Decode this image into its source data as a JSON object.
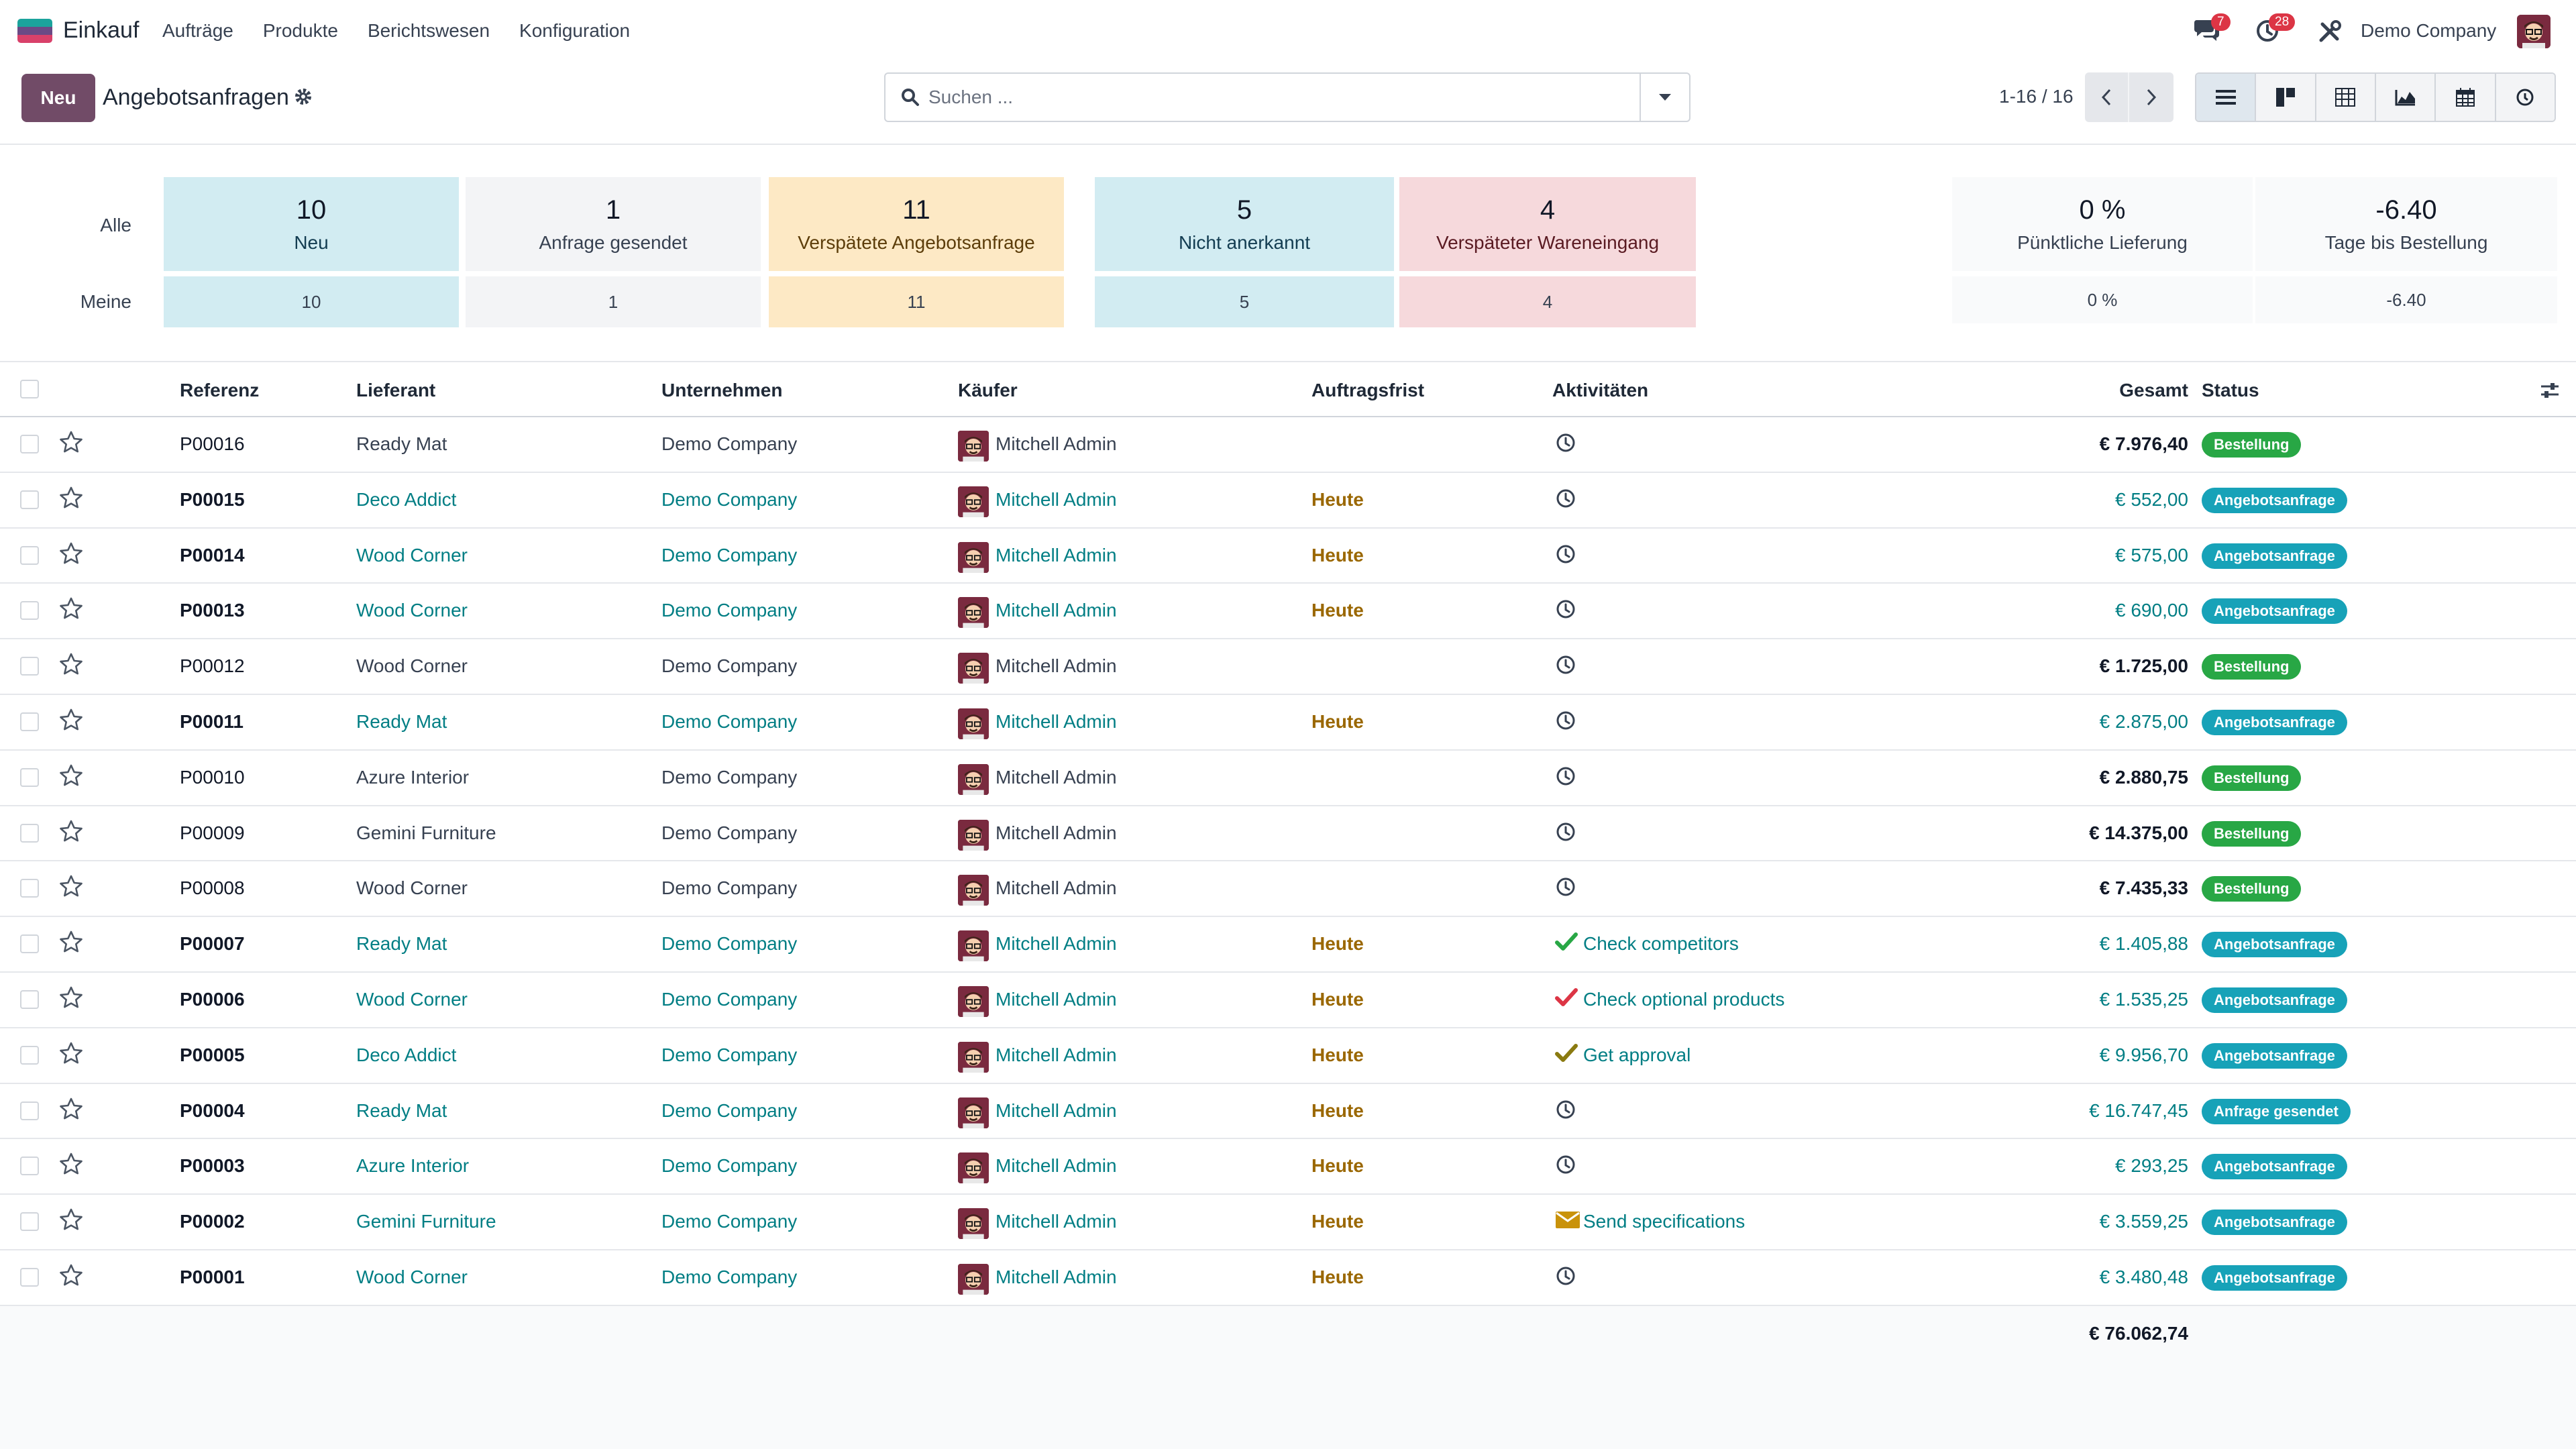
{
  "navbar": {
    "app_name": "Einkauf",
    "menu": [
      "Aufträge",
      "Produkte",
      "Berichtswesen",
      "Konfiguration"
    ],
    "messages_badge": "7",
    "activities_badge": "28",
    "company": "Demo Company"
  },
  "control": {
    "new_button": "Neu",
    "breadcrumb": "Angebotsanfragen",
    "search_placeholder": "Suchen ...",
    "pager": "1-16 / 16"
  },
  "dashboard": {
    "row_all": "Alle",
    "row_mine": "Meine",
    "tiles": [
      {
        "value": "10",
        "label": "Neu",
        "mine": "10"
      },
      {
        "value": "1",
        "label": "Anfrage gesendet",
        "mine": "1"
      },
      {
        "value": "11",
        "label": "Verspätete Angebotsanfrage",
        "mine": "11"
      },
      {
        "value": "5",
        "label": "Nicht anerkannt",
        "mine": "5"
      },
      {
        "value": "4",
        "label": "Verspäteter Wareneingang",
        "mine": "4"
      }
    ],
    "kpis": [
      {
        "value": "0 %",
        "label": "Pünktliche Lieferung",
        "mine": "0 %"
      },
      {
        "value": "-6.40",
        "label": "Tage bis Bestellung",
        "mine": "-6.40"
      }
    ]
  },
  "list": {
    "columns": {
      "reference": "Referenz",
      "vendor": "Lieferant",
      "company": "Unternehmen",
      "buyer": "Käufer",
      "deadline": "Auftragsfrist",
      "activities": "Aktivitäten",
      "total": "Gesamt",
      "status": "Status"
    },
    "rows": [
      {
        "ref": "P00016",
        "vendor": "Ready Mat",
        "company": "Demo Company",
        "buyer": "Mitchell Admin",
        "deadline": "",
        "activity": "",
        "total": "€ 7.976,40",
        "status": "Bestellung"
      },
      {
        "ref": "P00015",
        "vendor": "Deco Addict",
        "company": "Demo Company",
        "buyer": "Mitchell Admin",
        "deadline": "Heute",
        "activity": "",
        "total": "€ 552,00",
        "status": "Angebotsanfrage"
      },
      {
        "ref": "P00014",
        "vendor": "Wood Corner",
        "company": "Demo Company",
        "buyer": "Mitchell Admin",
        "deadline": "Heute",
        "activity": "",
        "total": "€ 575,00",
        "status": "Angebotsanfrage"
      },
      {
        "ref": "P00013",
        "vendor": "Wood Corner",
        "company": "Demo Company",
        "buyer": "Mitchell Admin",
        "deadline": "Heute",
        "activity": "",
        "total": "€ 690,00",
        "status": "Angebotsanfrage"
      },
      {
        "ref": "P00012",
        "vendor": "Wood Corner",
        "company": "Demo Company",
        "buyer": "Mitchell Admin",
        "deadline": "",
        "activity": "",
        "total": "€ 1.725,00",
        "status": "Bestellung"
      },
      {
        "ref": "P00011",
        "vendor": "Ready Mat",
        "company": "Demo Company",
        "buyer": "Mitchell Admin",
        "deadline": "Heute",
        "activity": "",
        "total": "€ 2.875,00",
        "status": "Angebotsanfrage"
      },
      {
        "ref": "P00010",
        "vendor": "Azure Interior",
        "company": "Demo Company",
        "buyer": "Mitchell Admin",
        "deadline": "",
        "activity": "",
        "total": "€ 2.880,75",
        "status": "Bestellung"
      },
      {
        "ref": "P00009",
        "vendor": "Gemini Furniture",
        "company": "Demo Company",
        "buyer": "Mitchell Admin",
        "deadline": "",
        "activity": "",
        "total": "€ 14.375,00",
        "status": "Bestellung"
      },
      {
        "ref": "P00008",
        "vendor": "Wood Corner",
        "company": "Demo Company",
        "buyer": "Mitchell Admin",
        "deadline": "",
        "activity": "",
        "total": "€ 7.435,33",
        "status": "Bestellung"
      },
      {
        "ref": "P00007",
        "vendor": "Ready Mat",
        "company": "Demo Company",
        "buyer": "Mitchell Admin",
        "deadline": "Heute",
        "activity": "Check competitors",
        "total": "€ 1.405,88",
        "status": "Angebotsanfrage"
      },
      {
        "ref": "P00006",
        "vendor": "Wood Corner",
        "company": "Demo Company",
        "buyer": "Mitchell Admin",
        "deadline": "Heute",
        "activity": "Check optional products",
        "total": "€ 1.535,25",
        "status": "Angebotsanfrage"
      },
      {
        "ref": "P00005",
        "vendor": "Deco Addict",
        "company": "Demo Company",
        "buyer": "Mitchell Admin",
        "deadline": "Heute",
        "activity": "Get approval",
        "total": "€ 9.956,70",
        "status": "Angebotsanfrage"
      },
      {
        "ref": "P00004",
        "vendor": "Ready Mat",
        "company": "Demo Company",
        "buyer": "Mitchell Admin",
        "deadline": "Heute",
        "activity": "",
        "total": "€ 16.747,45",
        "status": "Anfrage gesendet"
      },
      {
        "ref": "P00003",
        "vendor": "Azure Interior",
        "company": "Demo Company",
        "buyer": "Mitchell Admin",
        "deadline": "Heute",
        "activity": "",
        "total": "€ 293,25",
        "status": "Angebotsanfrage"
      },
      {
        "ref": "P00002",
        "vendor": "Gemini Furniture",
        "company": "Demo Company",
        "buyer": "Mitchell Admin",
        "deadline": "Heute",
        "activity": "Send specifications",
        "total": "€ 3.559,25",
        "status": "Angebotsanfrage"
      },
      {
        "ref": "P00001",
        "vendor": "Wood Corner",
        "company": "Demo Company",
        "buyer": "Mitchell Admin",
        "deadline": "Heute",
        "activity": "",
        "total": "€ 3.480,48",
        "status": "Angebotsanfrage"
      }
    ],
    "grand_total": "€ 76.062,74"
  },
  "colors": {
    "brand": "#714b67",
    "link": "#017e84",
    "status_order": "#28a745",
    "status_rfq": "#17a2b8",
    "deadline": "#9a6700"
  },
  "icons": [
    "messages-icon",
    "clock-icon",
    "tools-icon",
    "gear-icon",
    "search-icon",
    "caret-down-icon",
    "chevron-left-icon",
    "chevron-right-icon",
    "list-view-icon",
    "kanban-view-icon",
    "pivot-view-icon",
    "graph-view-icon",
    "calendar-view-icon",
    "activity-view-icon",
    "star-icon",
    "activity-clock-icon",
    "check-icon",
    "envelope-icon",
    "optional-columns-icon"
  ]
}
